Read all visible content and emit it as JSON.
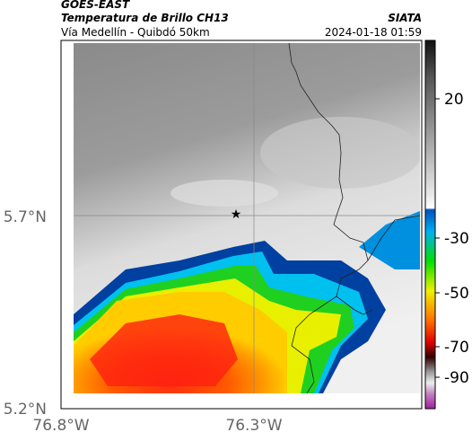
{
  "header": {
    "source": "GOES-EAST",
    "title": "Temperatura de Brillo CH13",
    "brand": "SIATA",
    "subtitle": "Vía Medellín - Quibdó 50km",
    "timestamp": "2024-01-18 01:59"
  },
  "map": {
    "lat_labels": [
      "5.7°N",
      "5.2°N"
    ],
    "lon_labels": [
      "76.8°W",
      "76.3°W"
    ]
  },
  "colorbar": {
    "ticks": [
      "20",
      "-30",
      "-50",
      "-70",
      "-90"
    ]
  }
}
